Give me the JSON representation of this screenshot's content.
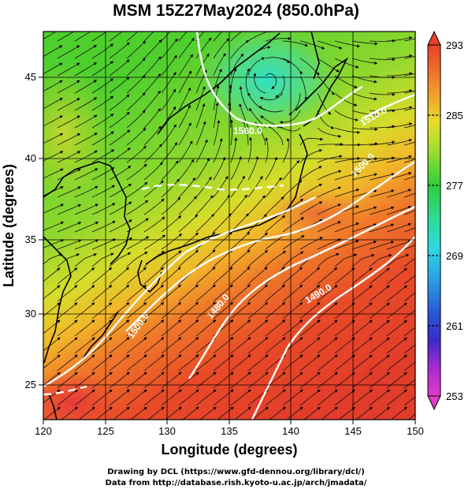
{
  "title": "MSM 15Z27May2024 (850.0hPa)",
  "xaxis": {
    "label": "Longitude (degrees)",
    "ticks": [
      "120",
      "125",
      "130",
      "135",
      "140",
      "145",
      "150"
    ]
  },
  "yaxis": {
    "label": "Latitude  (degrees)",
    "ticks": [
      "25",
      "30",
      "35",
      "40",
      "45"
    ]
  },
  "colorbar": {
    "ticks": [
      "293",
      "285",
      "277",
      "269",
      "261",
      "253"
    ],
    "min": 253,
    "max": 293
  },
  "contour_labels": [
    "1560.0",
    "1500.0",
    "1480.0",
    "1490.0",
    "1500.0",
    "1510.0"
  ],
  "credits": {
    "line1": "Drawing by DCL (https://www.gfd-dennou.org/library/dcl/)",
    "line2": "Data from http://database.rish.kyoto-u.ac.jp/arch/jmadata/"
  },
  "colors": {
    "warm": "#e8472a",
    "mid": "#c8d63a",
    "cool": "#5fcf3a",
    "cyan": "#3fe0b8"
  }
}
